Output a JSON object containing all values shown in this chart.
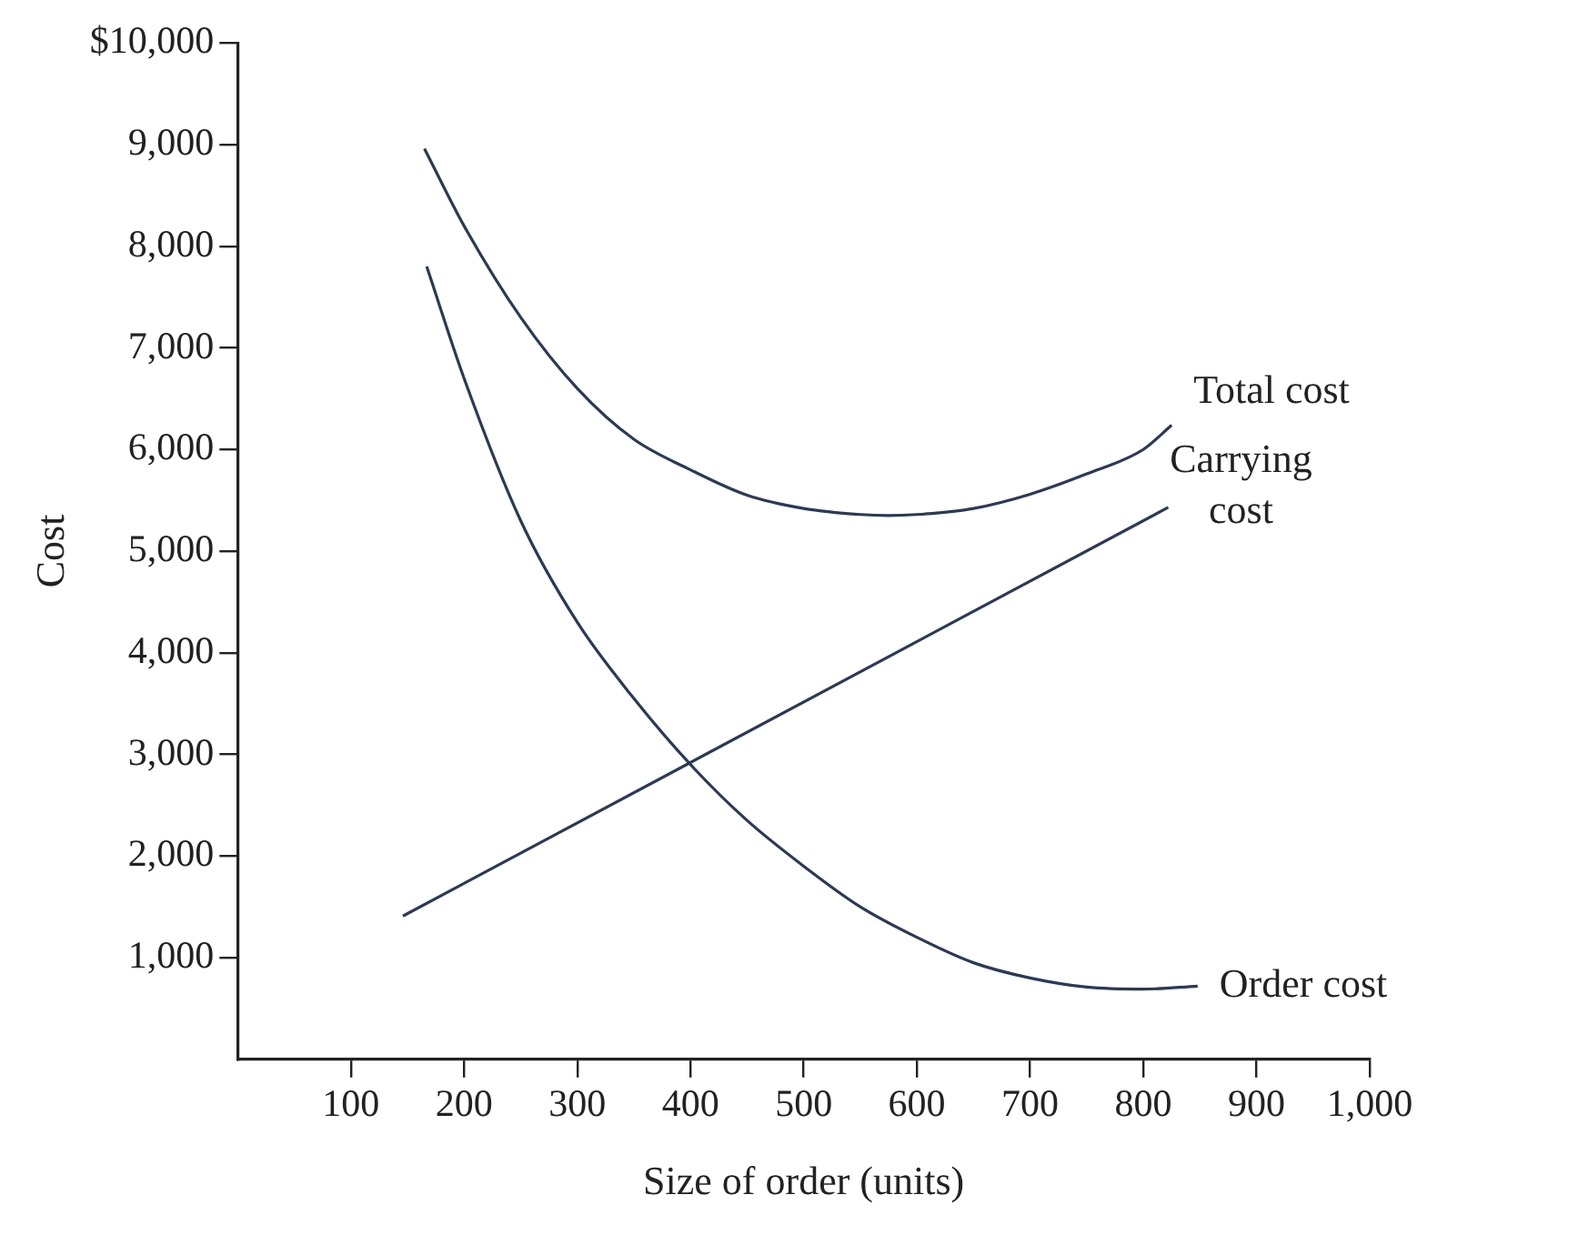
{
  "chart_data": {
    "type": "line",
    "xlabel": "Size of order (units)",
    "ylabel": "Cost",
    "xlim": [
      0,
      1000
    ],
    "xticks": [
      100,
      200,
      300,
      400,
      500,
      600,
      700,
      800,
      900,
      {
        "value": 1000,
        "label": "1,000"
      }
    ],
    "ylim": [
      0,
      10000
    ],
    "yticks": [
      {
        "value": 1000,
        "label": "1,000"
      },
      {
        "value": 2000,
        "label": "2,000"
      },
      {
        "value": 3000,
        "label": "3,000"
      },
      {
        "value": 4000,
        "label": "4,000"
      },
      {
        "value": 5000,
        "label": "5,000"
      },
      {
        "value": 6000,
        "label": "6,000"
      },
      {
        "value": 7000,
        "label": "7,000"
      },
      {
        "value": 8000,
        "label": "8,000"
      },
      {
        "value": 9000,
        "label": "9,000"
      },
      {
        "value": 10000,
        "label": "$10,000"
      }
    ],
    "series": [
      {
        "name": "Total cost",
        "color": "#2b3a55",
        "x": [
          165,
          200,
          250,
          300,
          350,
          400,
          450,
          500,
          550,
          575,
          600,
          650,
          700,
          750,
          800,
          825
        ],
        "values": [
          8960,
          8200,
          7300,
          6600,
          6100,
          5800,
          5550,
          5420,
          5360,
          5350,
          5360,
          5420,
          5560,
          5760,
          6000,
          6240
        ]
      },
      {
        "name": "Carrying cost",
        "color": "#2b3a55",
        "x": [
          146,
          822
        ],
        "values": [
          1410,
          5430
        ]
      },
      {
        "name": "Order cost",
        "color": "#2b3a55",
        "x": [
          167,
          200,
          250,
          300,
          350,
          400,
          450,
          500,
          550,
          600,
          650,
          700,
          750,
          800,
          848
        ],
        "values": [
          7800,
          6700,
          5300,
          4300,
          3550,
          2900,
          2350,
          1900,
          1500,
          1200,
          950,
          800,
          710,
          690,
          720
        ]
      }
    ]
  }
}
